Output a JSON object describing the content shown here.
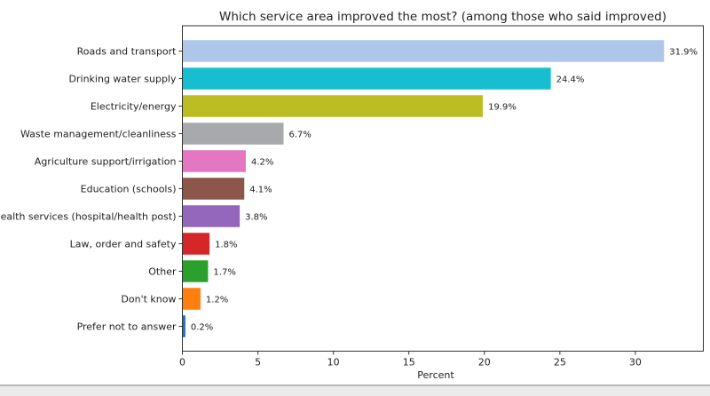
{
  "chart_data": {
    "type": "bar",
    "orientation": "horizontal",
    "title": "Which service area improved the most? (among those who said improved)",
    "xlabel": "Percent",
    "ylabel": "",
    "xlim": [
      0,
      34.5
    ],
    "xticks": [
      0,
      5,
      10,
      15,
      20,
      25,
      30
    ],
    "grid": false,
    "categories": [
      "Roads and transport",
      "Drinking water supply",
      "Electricity/energy",
      "Waste management/cleanliness",
      "Agriculture support/irrigation",
      "Education (schools)",
      "Health services (hospital/health post)",
      "Law, order and safety",
      "Other",
      "Don't know",
      "Prefer not to answer"
    ],
    "values": [
      31.9,
      24.4,
      19.9,
      6.7,
      4.2,
      4.1,
      3.8,
      1.8,
      1.7,
      1.2,
      0.2
    ],
    "data_labels": [
      "31.9%",
      "24.4%",
      "19.9%",
      "6.7%",
      "4.2%",
      "4.1%",
      "3.8%",
      "1.8%",
      "1.7%",
      "1.2%",
      "0.2%"
    ],
    "colors": [
      "#aec7e8",
      "#17becf",
      "#bcbd22",
      "#a7a9ac",
      "#e377c2",
      "#8c564b",
      "#9467bd",
      "#d62728",
      "#2ca02c",
      "#ff7f0e",
      "#1f77b4"
    ]
  }
}
